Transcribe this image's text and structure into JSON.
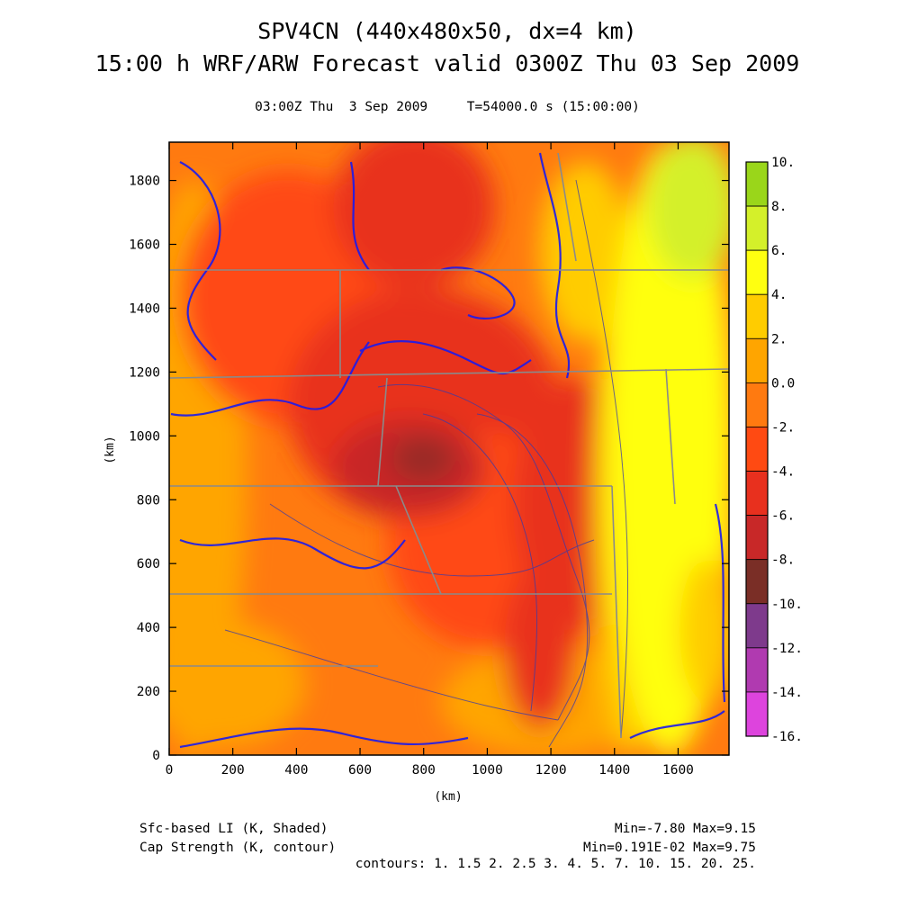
{
  "header": {
    "title_line1": "SPV4CN (440x480x50, dx=4 km)",
    "title_line2": "15:00 h WRF/ARW Forecast valid 0300Z Thu 03 Sep 2009",
    "subtitle": "03:00Z Thu  3 Sep 2009     T=54000.0 s (15:00:00)"
  },
  "footer": {
    "shaded_label": "Sfc-based LI (K, Shaded)",
    "contour_label": "Cap Strength (K, contour)",
    "shaded_range": "Min=-7.80 Max=9.15",
    "contour_range": "Min=0.191E-02 Max=9.75",
    "contours": "contours: 1. 1.5 2. 2.5 3. 4. 5. 7. 10. 15. 20. 25."
  },
  "chart_data": {
    "type": "heatmap",
    "xlabel": "(km)",
    "ylabel": "(km)",
    "xlim": [
      0,
      1760
    ],
    "ylim": [
      0,
      1920
    ],
    "x_ticks": [
      0,
      200,
      400,
      600,
      800,
      1000,
      1200,
      1400,
      1600
    ],
    "y_ticks": [
      0,
      200,
      400,
      600,
      800,
      1000,
      1200,
      1400,
      1600,
      1800
    ],
    "shaded_field": "Sfc-based LI (K, Shaded)",
    "shaded_min": -7.8,
    "shaded_max": 9.15,
    "contour_field": "Cap Strength (K, contour)",
    "contour_min": 0.00191,
    "contour_max": 9.75,
    "contour_levels": [
      1,
      1.5,
      2,
      2.5,
      3,
      4,
      5,
      7,
      10,
      15,
      20,
      25
    ],
    "colorbar": {
      "labels": [
        "10.",
        "8.",
        "6.",
        "4.",
        "2.",
        "0.0",
        "-2.",
        "-4.",
        "-6.",
        "-8.",
        "-10.",
        "-12.",
        "-14.",
        "-16."
      ],
      "bins": [
        {
          "from": 8,
          "to": 10,
          "color": "#9ad61a"
        },
        {
          "from": 6,
          "to": 8,
          "color": "#d4f02a"
        },
        {
          "from": 4,
          "to": 6,
          "color": "#ffff10"
        },
        {
          "from": 2,
          "to": 4,
          "color": "#ffcc00"
        },
        {
          "from": 0,
          "to": 2,
          "color": "#ffa500"
        },
        {
          "from": -2,
          "to": 0,
          "color": "#ff7a10"
        },
        {
          "from": -4,
          "to": -2,
          "color": "#ff4a12"
        },
        {
          "from": -6,
          "to": -4,
          "color": "#e8301e"
        },
        {
          "from": -8,
          "to": -6,
          "color": "#c82828"
        },
        {
          "from": -10,
          "to": -8,
          "color": "#7a2e26"
        },
        {
          "from": -12,
          "to": -10,
          "color": "#7e3a8c"
        },
        {
          "from": -14,
          "to": -12,
          "color": "#b03ab0"
        },
        {
          "from": -16,
          "to": -14,
          "color": "#dd44dd"
        }
      ]
    }
  }
}
